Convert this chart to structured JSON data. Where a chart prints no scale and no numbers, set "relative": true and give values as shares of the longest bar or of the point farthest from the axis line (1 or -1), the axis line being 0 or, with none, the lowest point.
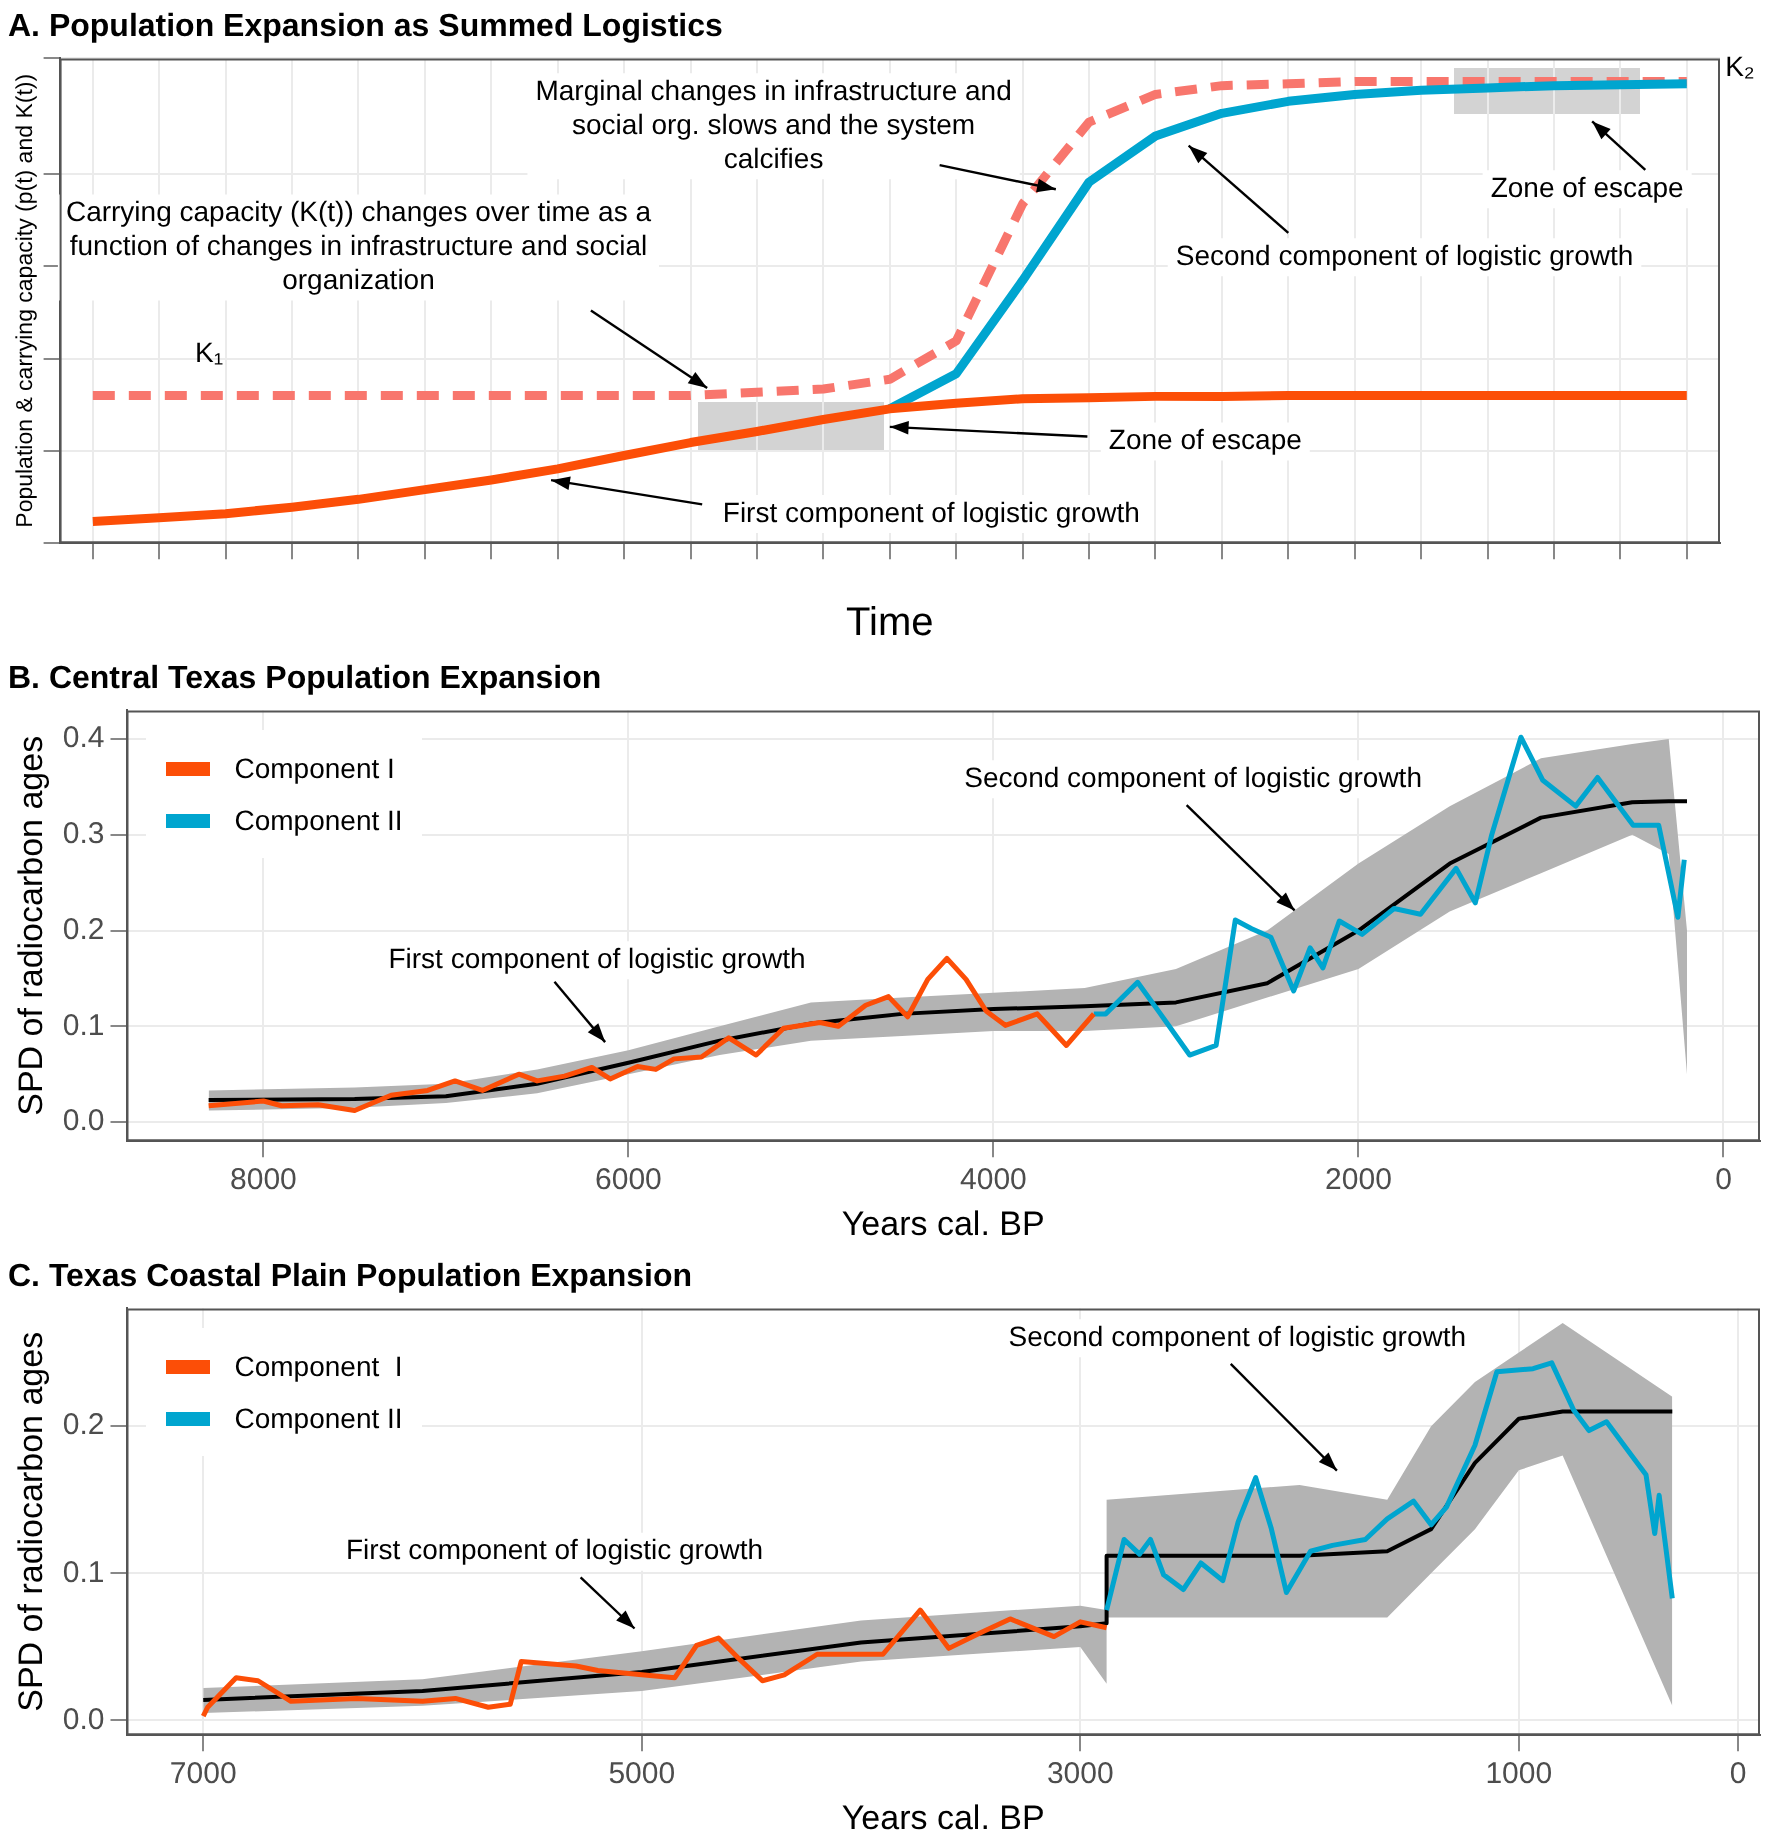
{
  "chart_data": [
    {
      "type": "line",
      "title": "A. Population Expansion as Summed Logistics",
      "xlabel": "Time",
      "ylabel": "Population & carrying capacity (p(t) and K(t))",
      "relative": true,
      "grid": true,
      "categories": [
        null,
        null,
        null,
        null,
        null,
        null,
        null,
        null,
        null,
        null,
        null,
        null,
        null,
        null,
        null,
        null,
        null,
        null,
        null,
        null,
        null,
        null,
        null,
        null,
        null
      ],
      "series": [
        {
          "color": "#fc4e07",
          "values": [
            0.047,
            0.055,
            0.064,
            0.078,
            0.095,
            0.116,
            0.137,
            0.161,
            0.19,
            0.218,
            0.242,
            0.268,
            0.291,
            0.303,
            0.313,
            0.315,
            0.318,
            0.318,
            0.32,
            0.32,
            0.32,
            0.32,
            0.32,
            0.32,
            0.32
          ]
        },
        {
          "color": "#00a5cf",
          "values": [
            null,
            null,
            null,
            null,
            null,
            null,
            null,
            null,
            null,
            null,
            null,
            null,
            0.291,
            0.367,
            0.569,
            0.782,
            0.882,
            0.931,
            0.957,
            0.972,
            0.981,
            0.986,
            0.991,
            0.993,
            0.995
          ]
        },
        {
          "color": "#f8766d",
          "line_style": "dashed",
          "values": [
            0.32,
            0.32,
            0.32,
            0.32,
            0.32,
            0.32,
            0.32,
            0.32,
            0.32,
            0.32,
            0.327,
            0.334,
            0.355,
            0.438,
            0.735,
            0.912,
            0.972,
            0.991,
            0.995,
            1,
            1,
            1,
            1,
            1,
            1
          ]
        }
      ],
      "annotations": [
        "Carrying capacity (K(t)) changes over time as a function of changes in infrastructure and social organization",
        "Marginal changes in infrastructure and social org. slows and the system calcifies",
        "Second component of logistic growth",
        "Zone of escape",
        "Zone of escape",
        "First component of logistic growth",
        "K₁",
        "K₂"
      ]
    },
    {
      "type": "line",
      "title": "B. Central Texas Population Expansion",
      "xlabel": "Years cal. BP",
      "ylabel": "SPD of radiocarbon ages",
      "grid": true,
      "legend": "top left",
      "xlim": [
        8750,
        -200
      ],
      "xticks": [
        8000,
        6000,
        4000,
        2000,
        0
      ],
      "ylim": [
        -0.02,
        0.43
      ],
      "yticks": [
        {
          "value": 0,
          "label": "0.0"
        },
        {
          "value": 0.1,
          "label": "0.1"
        },
        {
          "value": 0.2,
          "label": "0.2"
        },
        {
          "value": 0.3,
          "label": "0.3"
        },
        {
          "value": 0.4,
          "label": "0.4"
        }
      ],
      "series": [
        {
          "name": "Component I",
          "color": "#fc4e07",
          "x": [
            8300,
            8000,
            7900,
            7700,
            7500,
            7300,
            7100,
            6950,
            6800,
            6600,
            6500,
            6350,
            6200,
            6100,
            5950,
            5850,
            5750,
            5600,
            5450,
            5300,
            5150,
            4950,
            4850,
            4700,
            4575,
            4470,
            4360,
            4255,
            4150,
            4040,
            3935,
            3760,
            3600,
            3450
          ],
          "values": [
            0.017,
            0.022,
            0.017,
            0.018,
            0.012,
            0.028,
            0.033,
            0.043,
            0.033,
            0.05,
            0.043,
            0.048,
            0.057,
            0.045,
            0.058,
            0.055,
            0.066,
            0.068,
            0.088,
            0.07,
            0.098,
            0.104,
            0.1,
            0.122,
            0.131,
            0.11,
            0.149,
            0.171,
            0.149,
            0.116,
            0.101,
            0.113,
            0.08,
            0.113
          ]
        },
        {
          "name": "Component II",
          "color": "#00a5cf",
          "x": [
            3450,
            3385,
            3210,
            3085,
            2925,
            2780,
            2675,
            2585,
            2480,
            2355,
            2265,
            2195,
            2105,
            1980,
            1805,
            1660,
            1465,
            1360,
            1270,
            1110,
            990,
            810,
            690,
            495,
            355,
            250,
            215
          ],
          "values": [
            0.113,
            0.113,
            0.146,
            0.113,
            0.07,
            0.08,
            0.211,
            0.202,
            0.193,
            0.137,
            0.182,
            0.161,
            0.21,
            0.196,
            0.223,
            0.217,
            0.265,
            0.229,
            0.3,
            0.402,
            0.357,
            0.33,
            0.36,
            0.31,
            0.31,
            0.214,
            0.274
          ]
        },
        {
          "color": "#000000",
          "x": [
            8300,
            7500,
            7000,
            6500,
            6000,
            5500,
            5000,
            4500,
            4000,
            3500,
            3000,
            2500,
            2000,
            1500,
            1000,
            500,
            300,
            200
          ],
          "values": [
            0.023,
            0.024,
            0.027,
            0.04,
            0.062,
            0.085,
            0.103,
            0.113,
            0.118,
            0.121,
            0.125,
            0.145,
            0.2,
            0.27,
            0.318,
            0.334,
            0.335,
            0.335
          ],
          "lower": [
            0.012,
            0.015,
            0.02,
            0.03,
            0.05,
            0.07,
            0.085,
            0.09,
            0.095,
            0.095,
            0.1,
            0.13,
            0.16,
            0.22,
            0.26,
            0.3,
            0.28,
            0.05
          ],
          "upper": [
            0.033,
            0.036,
            0.04,
            0.055,
            0.075,
            0.1,
            0.125,
            0.13,
            0.135,
            0.14,
            0.16,
            0.2,
            0.27,
            0.33,
            0.38,
            0.395,
            0.4,
            0.2
          ]
        }
      ],
      "annotations": [
        "First component of logistic growth",
        {
          "text": "Second component of logistic growth",
          "x": 2350,
          "y": 0.221
        }
      ]
    },
    {
      "type": "line",
      "title": "C. Texas Coastal Plain Population Expansion",
      "xlabel": "Years cal. BP",
      "ylabel": "SPD of radiocarbon ages",
      "grid": true,
      "legend": "top left",
      "xlim": [
        7350,
        -100
      ],
      "xticks": [
        7000,
        5000,
        3000,
        1000,
        0
      ],
      "ylim": [
        -0.01,
        0.28
      ],
      "yticks": [
        {
          "value": 0,
          "label": "0.0"
        },
        {
          "value": 0.1,
          "label": "0.1"
        },
        {
          "value": 0.2,
          "label": "0.2"
        }
      ],
      "series": [
        {
          "name": "Component  I",
          "color": "#fc4e07",
          "x": [
            7000,
            6980,
            6850,
            6750,
            6600,
            6300,
            6000,
            5850,
            5700,
            5600,
            5550,
            5300,
            5200,
            5000,
            4850,
            4750,
            4650,
            4550,
            4450,
            4350,
            4200,
            4000,
            3900,
            3730,
            3600,
            3450,
            3320,
            3120,
            3000,
            2880
          ],
          "values": [
            0.003,
            0.009,
            0.029,
            0.027,
            0.013,
            0.015,
            0.013,
            0.015,
            0.009,
            0.011,
            0.04,
            0.037,
            0.034,
            0.031,
            0.029,
            0.051,
            0.056,
            0.041,
            0.027,
            0.031,
            0.045,
            0.045,
            0.045,
            0.075,
            0.049,
            0.06,
            0.069,
            0.057,
            0.067,
            0.063
          ]
        },
        {
          "name": "Component II",
          "color": "#00a5cf",
          "x": [
            2880,
            2800,
            2730,
            2680,
            2620,
            2530,
            2450,
            2350,
            2280,
            2200,
            2130,
            2060,
            1950,
            1850,
            1700,
            1600,
            1480,
            1400,
            1330,
            1200,
            1100,
            935,
            850,
            750,
            680,
            600,
            500,
            420,
            380,
            360,
            300
          ],
          "values": [
            0.075,
            0.123,
            0.113,
            0.123,
            0.099,
            0.089,
            0.107,
            0.095,
            0.135,
            0.165,
            0.131,
            0.087,
            0.115,
            0.119,
            0.123,
            0.137,
            0.149,
            0.133,
            0.145,
            0.187,
            0.237,
            0.239,
            0.243,
            0.211,
            0.197,
            0.203,
            0.183,
            0.167,
            0.127,
            0.153,
            0.083
          ]
        },
        {
          "color": "#000000",
          "x": [
            7000,
            6000,
            5000,
            4000,
            3000,
            2880,
            2880,
            2000,
            1600,
            1400,
            1200,
            1000,
            800,
            300
          ],
          "values": [
            0.014,
            0.02,
            0.033,
            0.053,
            0.064,
            0.066,
            0.112,
            0.112,
            0.115,
            0.13,
            0.175,
            0.205,
            0.21,
            0.21
          ],
          "lower": [
            0.005,
            0.01,
            0.02,
            0.04,
            0.05,
            0.025,
            0.07,
            0.07,
            0.07,
            0.1,
            0.13,
            0.17,
            0.18,
            0.01
          ],
          "upper": [
            0.022,
            0.028,
            0.047,
            0.068,
            0.078,
            0.075,
            0.15,
            0.16,
            0.15,
            0.2,
            0.23,
            0.25,
            0.27,
            0.22
          ]
        }
      ],
      "annotations": [
        "First component of logistic growth",
        "Second component of logistic growth"
      ]
    }
  ]
}
